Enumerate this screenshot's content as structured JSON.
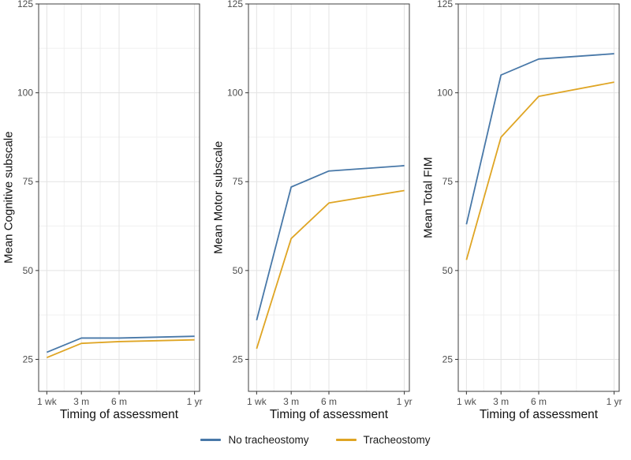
{
  "figure": {
    "background": "#ffffff"
  },
  "colors": {
    "no_tracheostomy": "#4878a8",
    "tracheostomy": "#dfa524",
    "grid_major": "#e3e3e3",
    "grid_minor": "#f0f0f0",
    "panel_border": "#3f3f3f",
    "tick": "#333333",
    "tick_label": "#4d4d4d",
    "axis_label": "#111111"
  },
  "legend": {
    "entries": [
      {
        "label": "No tracheostomy",
        "color": "#4878a8"
      },
      {
        "label": "Tracheostomy",
        "color": "#dfa524"
      }
    ]
  },
  "chart_data": [
    {
      "type": "line",
      "title": "",
      "ylabel": "Mean Cognitive subscale",
      "xlabel": "Timing of assessment",
      "x_tick_labels": [
        "1 wk",
        "3 m",
        "6 m",
        "1 yr"
      ],
      "x_months": [
        0.25,
        3,
        6,
        12
      ],
      "y_ticks": [
        25,
        50,
        75,
        100,
        125
      ],
      "xlim": [
        -0.4,
        12.4
      ],
      "ylim": [
        16,
        125
      ],
      "grid": "on",
      "legend_position": "bottom",
      "series": [
        {
          "name": "No tracheostomy",
          "color": "#4878a8",
          "values": [
            27,
            31,
            31,
            31.5
          ]
        },
        {
          "name": "Tracheostomy",
          "color": "#dfa524",
          "values": [
            25.5,
            29.5,
            30,
            30.5
          ]
        }
      ]
    },
    {
      "type": "line",
      "title": "",
      "ylabel": "Mean Motor subscale",
      "xlabel": "Timing of assessment",
      "x_tick_labels": [
        "1 wk",
        "3 m",
        "6 m",
        "1 yr"
      ],
      "x_months": [
        0.25,
        3,
        6,
        12
      ],
      "y_ticks": [
        25,
        50,
        75,
        100,
        125
      ],
      "xlim": [
        -0.4,
        12.4
      ],
      "ylim": [
        16,
        125
      ],
      "grid": "on",
      "legend_position": "bottom",
      "series": [
        {
          "name": "No tracheostomy",
          "color": "#4878a8",
          "values": [
            36,
            73.5,
            78,
            79.5
          ]
        },
        {
          "name": "Tracheostomy",
          "color": "#dfa524",
          "values": [
            28,
            59,
            69,
            72.5
          ]
        }
      ]
    },
    {
      "type": "line",
      "title": "",
      "ylabel": "Mean Total FIM",
      "xlabel": "Timing of assessment",
      "x_tick_labels": [
        "1 wk",
        "3 m",
        "6 m",
        "1 yr"
      ],
      "x_months": [
        0.25,
        3,
        6,
        12
      ],
      "y_ticks": [
        25,
        50,
        75,
        100,
        125
      ],
      "xlim": [
        -0.4,
        12.4
      ],
      "ylim": [
        16,
        125
      ],
      "grid": "on",
      "legend_position": "bottom",
      "series": [
        {
          "name": "No tracheostomy",
          "color": "#4878a8",
          "values": [
            63,
            105,
            109.5,
            111
          ]
        },
        {
          "name": "Tracheostomy",
          "color": "#dfa524",
          "values": [
            53,
            87.5,
            99,
            103
          ]
        }
      ]
    }
  ]
}
